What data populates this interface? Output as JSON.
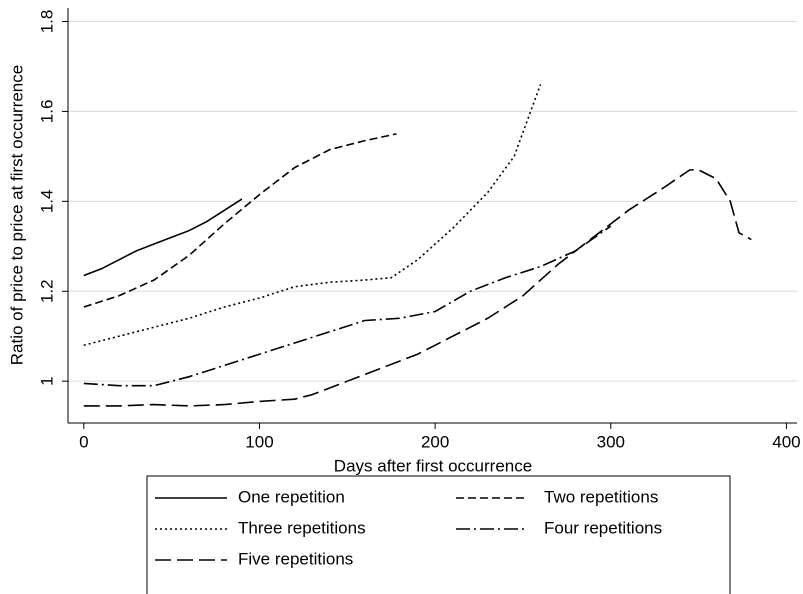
{
  "chart_data": {
    "type": "line",
    "xlabel": "Days after first occurrence",
    "ylabel": "Ratio of price to price at first occurrence",
    "xlim": [
      -9,
      406
    ],
    "ylim": [
      0.907,
      1.83
    ],
    "xticks": [
      0,
      100,
      200,
      300,
      400
    ],
    "yticks": [
      1,
      1.2,
      1.4,
      1.6,
      1.8
    ],
    "grid": true,
    "legend": "bottom",
    "series": [
      {
        "name": "One repetition",
        "color": "#000000",
        "dash": "none",
        "x": [
          0,
          10,
          20,
          30,
          40,
          50,
          60,
          70,
          80,
          90
        ],
        "values": [
          1.235,
          1.25,
          1.27,
          1.29,
          1.305,
          1.32,
          1.335,
          1.355,
          1.38,
          1.405
        ]
      },
      {
        "name": "Two repetitions",
        "color": "#000000",
        "dash": "8,4",
        "x": [
          0,
          20,
          40,
          60,
          80,
          100,
          120,
          140,
          160,
          178
        ],
        "values": [
          1.165,
          1.19,
          1.225,
          1.28,
          1.35,
          1.415,
          1.475,
          1.515,
          1.535,
          1.55
        ]
      },
      {
        "name": "Three repetitions",
        "color": "#000000",
        "dash": "2,3",
        "x": [
          0,
          20,
          40,
          60,
          80,
          100,
          120,
          140,
          160,
          175,
          190,
          210,
          230,
          245,
          260
        ],
        "values": [
          1.08,
          1.1,
          1.12,
          1.14,
          1.165,
          1.185,
          1.21,
          1.22,
          1.225,
          1.23,
          1.27,
          1.34,
          1.42,
          1.5,
          1.66
        ]
      },
      {
        "name": "Four repetitions",
        "color": "#000000",
        "dash": "14,4,2,4",
        "x": [
          0,
          20,
          40,
          60,
          80,
          100,
          120,
          140,
          160,
          180,
          200,
          220,
          240,
          260,
          280,
          300
        ],
        "values": [
          0.995,
          0.99,
          0.99,
          1.01,
          1.035,
          1.06,
          1.085,
          1.11,
          1.135,
          1.14,
          1.155,
          1.2,
          1.23,
          1.255,
          1.29,
          1.345
        ]
      },
      {
        "name": "Five repetitions",
        "color": "#000000",
        "dash": "16,6",
        "x": [
          0,
          20,
          40,
          60,
          80,
          100,
          120,
          130,
          150,
          170,
          190,
          210,
          230,
          250,
          270,
          290,
          310,
          330,
          345,
          350,
          360,
          368,
          373,
          380
        ],
        "values": [
          0.945,
          0.945,
          0.948,
          0.945,
          0.948,
          0.955,
          0.96,
          0.97,
          1.0,
          1.03,
          1.06,
          1.1,
          1.14,
          1.19,
          1.26,
          1.32,
          1.38,
          1.43,
          1.47,
          1.47,
          1.45,
          1.4,
          1.33,
          1.315
        ]
      }
    ]
  }
}
